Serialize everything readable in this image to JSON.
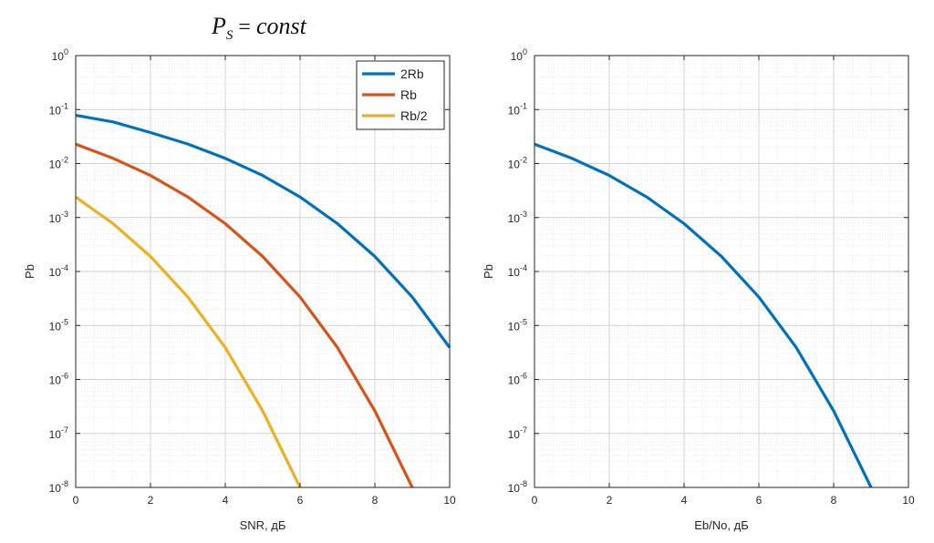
{
  "title": {
    "main": "P",
    "subscript": "S",
    "equals": "=",
    "rhs": "const"
  },
  "chart_data": [
    {
      "type": "line",
      "xlabel": "SNR, дБ",
      "ylabel": "Pb",
      "xlim": [
        0,
        10
      ],
      "ylim": [
        1e-08,
        1
      ],
      "yscale": "log",
      "grid": true,
      "minor_grid": true,
      "legend_position": "top-right",
      "x_ticks": [
        "0",
        "2",
        "4",
        "6",
        "8",
        "10"
      ],
      "y_ticks": [
        {
          "base": "10",
          "exp": "0"
        },
        {
          "base": "10",
          "exp": "-1"
        },
        {
          "base": "10",
          "exp": "-2"
        },
        {
          "base": "10",
          "exp": "-3"
        },
        {
          "base": "10",
          "exp": "-4"
        },
        {
          "base": "10",
          "exp": "-5"
        },
        {
          "base": "10",
          "exp": "-6"
        },
        {
          "base": "10",
          "exp": "-7"
        },
        {
          "base": "10",
          "exp": "-8"
        }
      ],
      "series": [
        {
          "name": "2Rb",
          "color": "#0072BD",
          "x": [
            0,
            1,
            2,
            3,
            4,
            5,
            6,
            7,
            8,
            9,
            10
          ],
          "y": [
            0.078,
            0.059,
            0.0375,
            0.023,
            0.0125,
            0.006,
            0.0024,
            0.00077,
            0.00019,
            3.35e-05,
            3.9e-06
          ]
        },
        {
          "name": "Rb",
          "color": "#D95319",
          "x": [
            0,
            1,
            2,
            3,
            4,
            5,
            6,
            7,
            8,
            9
          ],
          "y": [
            0.0229,
            0.0125,
            0.006,
            0.0024,
            0.00077,
            0.00019,
            3.35e-05,
            3.9e-06,
            2.62e-07,
            1e-08
          ]
        },
        {
          "name": "Rb/2",
          "color": "#EDB120",
          "x": [
            0,
            1,
            2,
            3,
            4,
            5,
            6
          ],
          "y": [
            0.0024,
            0.00077,
            0.00019,
            3.35e-05,
            3.9e-06,
            2.62e-07,
            1e-08
          ]
        }
      ]
    },
    {
      "type": "line",
      "xlabel": "Eb/No, дБ",
      "ylabel": "Pb",
      "xlim": [
        0,
        10
      ],
      "ylim": [
        1e-08,
        1
      ],
      "yscale": "log",
      "grid": true,
      "minor_grid": true,
      "x_ticks": [
        "0",
        "2",
        "4",
        "6",
        "8",
        "10"
      ],
      "y_ticks": [
        {
          "base": "10",
          "exp": "0"
        },
        {
          "base": "10",
          "exp": "-1"
        },
        {
          "base": "10",
          "exp": "-2"
        },
        {
          "base": "10",
          "exp": "-3"
        },
        {
          "base": "10",
          "exp": "-4"
        },
        {
          "base": "10",
          "exp": "-5"
        },
        {
          "base": "10",
          "exp": "-6"
        },
        {
          "base": "10",
          "exp": "-7"
        },
        {
          "base": "10",
          "exp": "-8"
        }
      ],
      "series": [
        {
          "color": "#0072BD",
          "x": [
            0,
            1,
            2,
            3,
            4,
            5,
            6,
            7,
            8,
            9
          ],
          "y": [
            0.0229,
            0.0125,
            0.006,
            0.0024,
            0.00077,
            0.00019,
            3.35e-05,
            3.9e-06,
            2.62e-07,
            1e-08
          ]
        }
      ]
    }
  ]
}
